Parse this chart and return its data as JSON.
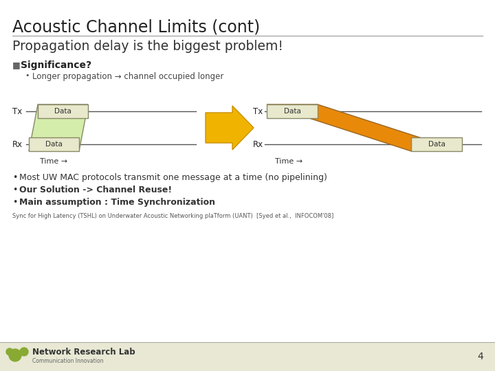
{
  "title": "Acoustic Channel Limits (cont)",
  "subtitle": "Propagation delay is the biggest problem!",
  "sig_bullet": "Significance?",
  "sub_bullet": "Longer propagation → channel occupied longer",
  "bullet2": "Most UW MAC protocols transmit one message at a time (no pipelining)",
  "bullet3": "Our Solution -> Channel Reuse!",
  "bullet4": "Main assumption : Time Synchronization",
  "footnote": "Sync for High Latency (TSHL) on Underwater Acoustic Networking plaTform (UANT)  [Syed et al.,  INFOCOM'08]",
  "footer_title": "Network Research Lab",
  "footer_subtitle": "Communication Innovation",
  "page_number": "4",
  "bg_color": "#ffffff",
  "title_color": "#222222",
  "subtitle_color": "#333333",
  "line_color": "#999999",
  "left_para_color": "#d4edaa",
  "left_box_color": "#e8e8cc",
  "right_para_color": "#e8890a",
  "right_box_color": "#e8e8cc",
  "arrow_color": "#f0b400",
  "arrow_edge_color": "#c89000",
  "diag_line_color": "#555555",
  "footer_line_color": "#aaaaaa",
  "footer_bg": "#e8e8d4",
  "logo_color": "#88aa33"
}
